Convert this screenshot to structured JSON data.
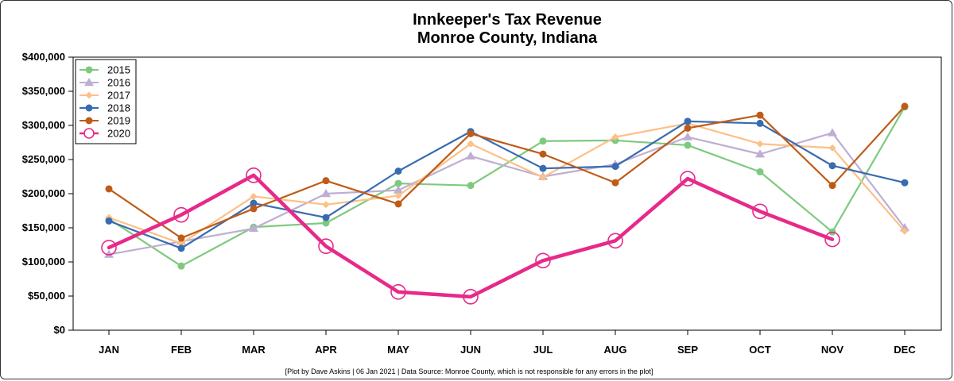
{
  "chart_data": {
    "type": "line",
    "title": [
      "Innkeeper's Tax Revenue",
      "Monroe County, Indiana"
    ],
    "caption": "[Plot by Dave Askins | 06 Jan 2021 | Data Source: Monroe County, which is not responsible for any errors in the plot]",
    "categories": [
      "JAN",
      "FEB",
      "MAR",
      "APR",
      "MAY",
      "JUN",
      "JUL",
      "AUG",
      "SEP",
      "OCT",
      "NOV",
      "DEC"
    ],
    "ylim": [
      0,
      400000
    ],
    "yticks": [
      0,
      50000,
      100000,
      150000,
      200000,
      250000,
      300000,
      350000,
      400000
    ],
    "ytick_labels": [
      "$0",
      "$50,000",
      "$100,000",
      "$150,000",
      "$200,000",
      "$250,000",
      "$300,000",
      "$350,000",
      "$400,000"
    ],
    "legend_position": "top-left",
    "series": [
      {
        "name": "2015",
        "color": "#7fc97f",
        "marker": "circle",
        "values": [
          163000,
          94000,
          151000,
          157000,
          215000,
          212000,
          277000,
          278000,
          271000,
          232000,
          144000,
          327000
        ]
      },
      {
        "name": "2016",
        "color": "#beaed4",
        "marker": "triangle",
        "values": [
          111000,
          130000,
          149000,
          200000,
          205000,
          255000,
          225000,
          243000,
          283000,
          258000,
          289000,
          150000
        ]
      },
      {
        "name": "2017",
        "color": "#fdc086",
        "marker": "diamond",
        "values": [
          165000,
          127000,
          196000,
          184000,
          197000,
          273000,
          224000,
          283000,
          303000,
          273000,
          267000,
          145000
        ]
      },
      {
        "name": "2018",
        "color": "#386cb0",
        "marker": "circle",
        "values": [
          160000,
          120000,
          186000,
          165000,
          233000,
          291000,
          237000,
          240000,
          306000,
          303000,
          241000,
          216000
        ]
      },
      {
        "name": "2019",
        "color": "#bf5b17",
        "marker": "circle",
        "values": [
          207000,
          135000,
          178000,
          219000,
          185000,
          288000,
          258000,
          216000,
          296000,
          315000,
          212000,
          328000
        ]
      },
      {
        "name": "2020",
        "color": "#e7298a",
        "marker": "open-circle",
        "values": [
          121000,
          169000,
          227000,
          123000,
          56000,
          49000,
          102000,
          131000,
          222000,
          174000,
          133000,
          null
        ]
      }
    ]
  }
}
